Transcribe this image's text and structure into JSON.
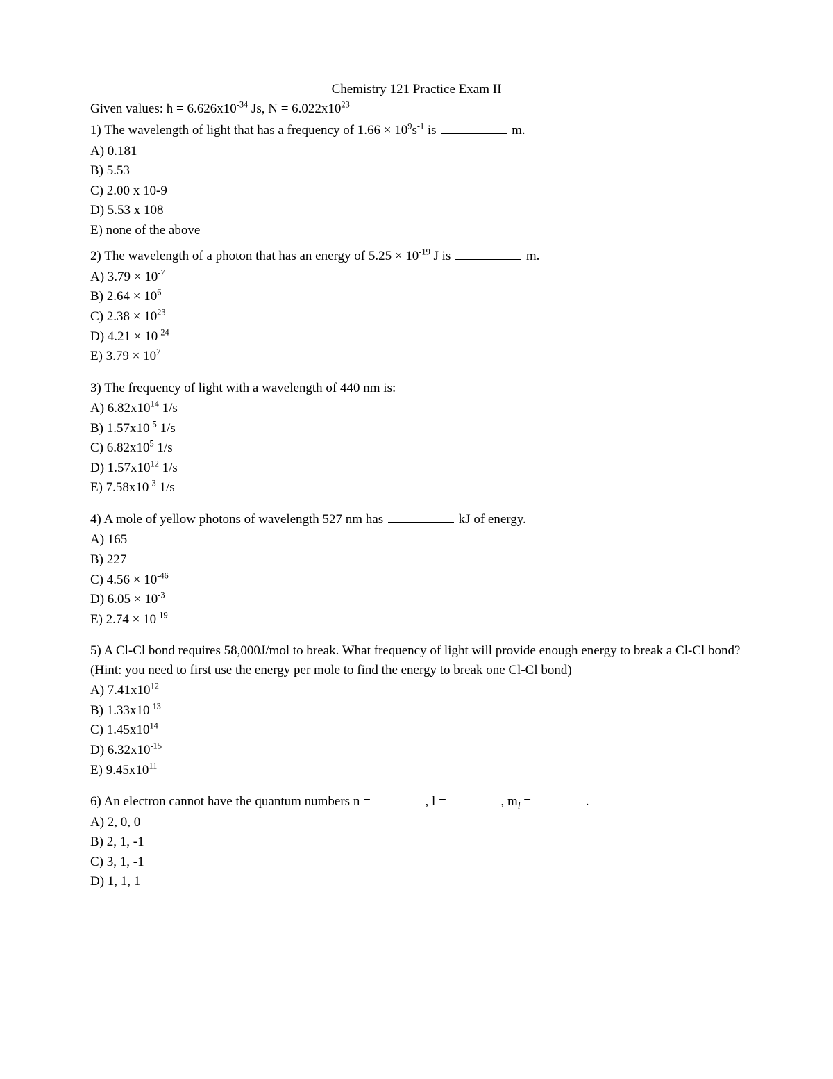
{
  "title": "Chemistry 121 Practice Exam II",
  "given_prefix": "Given values: h = 6.626x10",
  "given_exp1": "-34",
  "given_mid": " Js, N = 6.022x10",
  "given_exp2": "23",
  "q1_pre": "1) The wavelength of light that has a frequency of 1.66 × 10",
  "q1_exp1": "9",
  "q1_mid": "s",
  "q1_exp2": "-1",
  "q1_post1": " is ",
  "q1_post2": " m.",
  "q1_a": "A) 0.181",
  "q1_b": "B) 5.53",
  "q1_c": "C) 2.00 x 10-9",
  "q1_d": "D) 5.53 x 108",
  "q1_e": "E) none of the above",
  "q2_pre": "2) The wavelength of a photon that has an energy of 5.25 × 10",
  "q2_exp": "-19",
  "q2_mid": " J is ",
  "q2_post": " m.",
  "q2_a_pre": "A) 3.79 × 10",
  "q2_a_exp": "-7",
  "q2_b_pre": "B) 2.64 × 10",
  "q2_b_exp": "6",
  "q2_c_pre": "C) 2.38 × 10",
  "q2_c_exp": "23",
  "q2_d_pre": "D) 4.21 × 10",
  "q2_d_exp": "-24",
  "q2_e_pre": "E) 3.79 × 10",
  "q2_e_exp": "7",
  "q3_q": "3) The frequency of light with a wavelength of 440 nm is:",
  "q3_a_pre": "A) 6.82x10",
  "q3_a_exp": "14",
  "q3_a_post": " 1/s",
  "q3_b_pre": "B) 1.57x10",
  "q3_b_exp": "-5",
  "q3_b_post": " 1/s",
  "q3_c_pre": "C) 6.82x10",
  "q3_c_exp": "5",
  "q3_c_post": " 1/s",
  "q3_d_pre": "D) 1.57x10",
  "q3_d_exp": "12",
  "q3_d_post": " 1/s",
  "q3_e_pre": "E)  7.58x10",
  "q3_e_exp": "-3",
  "q3_e_post": " 1/s",
  "q4_pre": "4) A mole of yellow photons of wavelength 527 nm has ",
  "q4_post": " kJ of energy.",
  "q4_a": "A) 165",
  "q4_b": "B) 227",
  "q4_c_pre": "C) 4.56 × 10",
  "q4_c_exp": "-46",
  "q4_d_pre": "D) 6.05 × 10",
  "q4_d_exp": "-3",
  "q4_e_pre": "E) 2.74 × 10",
  "q4_e_exp": "-19",
  "q5_q": "5) A Cl-Cl bond requires 58,000J/mol to break.  What frequency of light will provide enough energy to break a Cl-Cl bond?  (Hint: you need to first use the energy per mole to find the energy to break one Cl-Cl bond)",
  "q5_a_pre": "A) 7.41x10",
  "q5_a_exp": "12",
  "q5_b_pre": "B) 1.33x10",
  "q5_b_exp": "-13",
  "q5_c_pre": "C) 1.45x10",
  "q5_c_exp": "14",
  "q5_d_pre": "D) 6.32x10",
  "q5_d_exp": "-15",
  "q5_e_pre": "E) 9.45x10",
  "q5_e_exp": "11",
  "q6_pre": "6) An electron cannot have the quantum numbers n = ",
  "q6_mid1": ", l = ",
  "q6_mid2": ", m",
  "q6_sub": "l",
  "q6_mid3": " = ",
  "q6_post": ".",
  "q6_a": "A) 2, 0, 0",
  "q6_b": "B) 2, 1, -1",
  "q6_c": "C) 3, 1, -1",
  "q6_d": "D) 1, 1, 1"
}
